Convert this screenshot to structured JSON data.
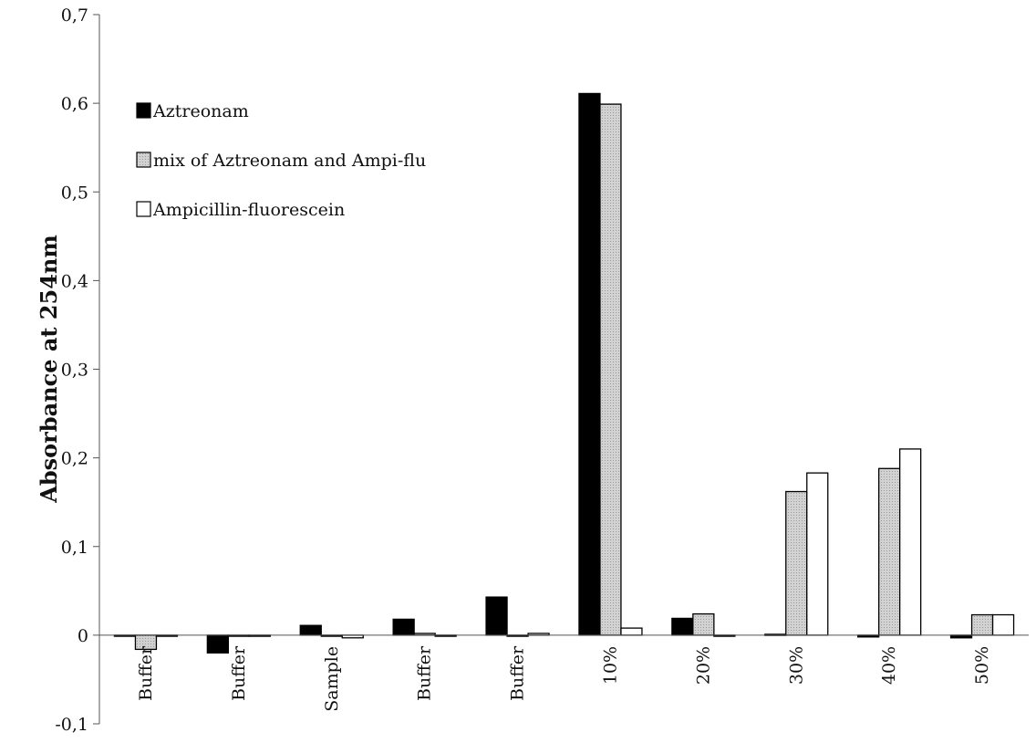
{
  "chart_data": {
    "type": "bar",
    "title": "",
    "ylabel": "Absorbance at 254nm",
    "xlabel": "",
    "ylim": [
      -0.1,
      0.7
    ],
    "yticks": [
      -0.1,
      0,
      0.1,
      0.2,
      0.3,
      0.4,
      0.5,
      0.6,
      0.7
    ],
    "ytick_labels": [
      "-0,1",
      "0",
      "0,1",
      "0,2",
      "0,3",
      "0,4",
      "0,5",
      "0,6",
      "0,7"
    ],
    "categories": [
      "Buffer",
      "Buffer",
      "Sample",
      "Buffer",
      "Buffer",
      "10%",
      "20%",
      "30%",
      "40%",
      "50%"
    ],
    "legend_position": "top-left",
    "series": [
      {
        "name": "Aztreonam",
        "color": "#000000",
        "values": [
          0,
          -0.02,
          0.011,
          0.018,
          0.043,
          0.611,
          0.019,
          0.001,
          -0.002,
          -0.003
        ]
      },
      {
        "name": "mix of Aztreonam and Ampi-flu",
        "color": "#c8c8c8",
        "values": [
          -0.016,
          0,
          0,
          0.002,
          0,
          0.599,
          0.024,
          0.162,
          0.188,
          0.023
        ]
      },
      {
        "name": "Ampicillin-fluorescein",
        "color": "#ffffff",
        "values": [
          0,
          0,
          -0.003,
          0,
          0.002,
          0.008,
          0,
          0.183,
          0.21,
          0.023
        ]
      }
    ]
  }
}
